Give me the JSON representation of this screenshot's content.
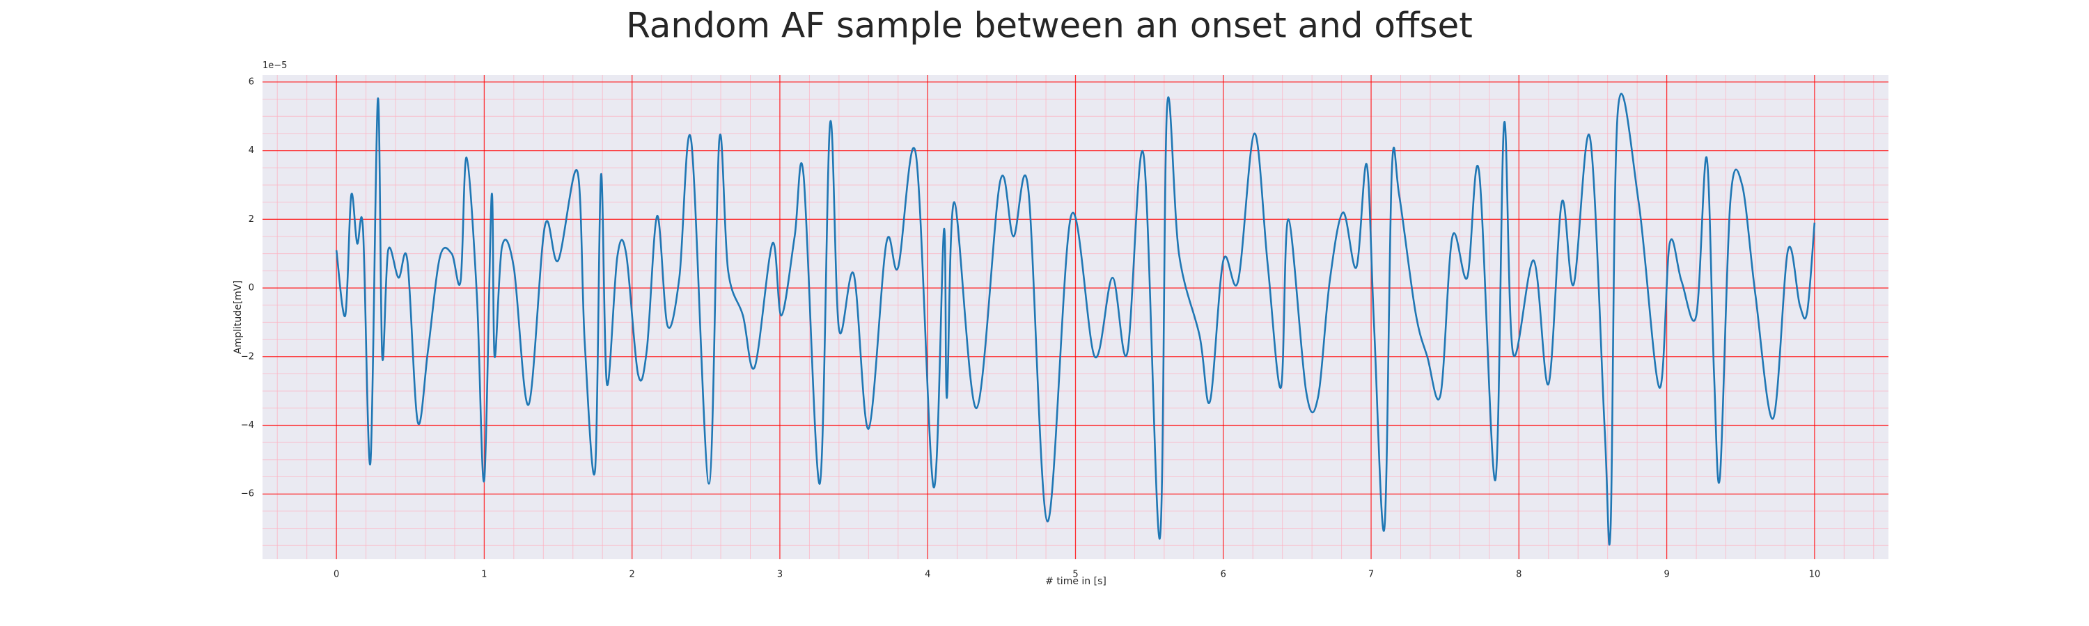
{
  "chart_data": {
    "type": "line",
    "title": "Random AF sample between an onset and offset",
    "xlabel": "# time in [s]",
    "ylabel": "Amplitude[mV]",
    "y_offset_label": "1e−5",
    "xlim": [
      -0.5,
      10.5
    ],
    "ylim": [
      -7.9,
      6.2
    ],
    "xticks": [
      0,
      1,
      2,
      3,
      4,
      5,
      6,
      7,
      8,
      9,
      10
    ],
    "yticks": [
      {
        "value": -6,
        "label": "−6"
      },
      {
        "value": -4,
        "label": "−4"
      },
      {
        "value": -2,
        "label": "−2"
      },
      0,
      2,
      4,
      6
    ],
    "grid": true,
    "grid_color": "#ff0000",
    "minor_grid": {
      "xstep": 0.2,
      "ystep": 0.5
    },
    "minor_grid_color": "#ffb0c0",
    "background": "#eaeaf2",
    "series": [
      {
        "color": "#1f77b4",
        "x": [
          0,
          0.06,
          0.1,
          0.14,
          0.18,
          0.23,
          0.28,
          0.31,
          0.35,
          0.42,
          0.48,
          0.55,
          0.62,
          0.7,
          0.78,
          0.84,
          0.88,
          0.95,
          1.0,
          1.05,
          1.07,
          1.12,
          1.2,
          1.3,
          1.41,
          1.5,
          1.63,
          1.68,
          1.75,
          1.79,
          1.83,
          1.9,
          1.96,
          2.04,
          2.1,
          2.17,
          2.24,
          2.32,
          2.4,
          2.52,
          2.59,
          2.65,
          2.75,
          2.83,
          2.95,
          3.01,
          3.1,
          3.16,
          3.27,
          3.34,
          3.4,
          3.5,
          3.6,
          3.72,
          3.8,
          3.92,
          4.04,
          4.11,
          4.13,
          4.18,
          4.33,
          4.49,
          4.58,
          4.68,
          4.81,
          4.97,
          5.13,
          5.25,
          5.35,
          5.46,
          5.57,
          5.62,
          5.7,
          5.84,
          5.91,
          6.0,
          6.1,
          6.21,
          6.3,
          6.39,
          6.44,
          6.56,
          6.64,
          6.72,
          6.81,
          6.9,
          6.97,
          7.02,
          7.09,
          7.14,
          7.19,
          7.3,
          7.38,
          7.47,
          7.55,
          7.65,
          7.73,
          7.84,
          7.9,
          7.96,
          8.1,
          8.2,
          8.29,
          8.37,
          8.48,
          8.58,
          8.62,
          8.67,
          8.81,
          8.95,
          9.02,
          9.1,
          9.2,
          9.27,
          9.32,
          9.36,
          9.43,
          9.51,
          9.6,
          9.72,
          9.82,
          9.9,
          9.95,
          10.0
        ],
        "values": [
          1.1,
          -0.8,
          2.7,
          1.3,
          1.7,
          -5.1,
          5.5,
          -2.0,
          1.1,
          0.3,
          0.8,
          -3.9,
          -1.8,
          0.9,
          1.0,
          0.2,
          3.8,
          -0.2,
          -5.6,
          2.7,
          -2.0,
          1.2,
          0.6,
          -3.4,
          1.8,
          0.8,
          3.4,
          -1.6,
          -5.3,
          3.3,
          -2.8,
          0.9,
          1.0,
          -2.5,
          -1.8,
          2.1,
          -1.1,
          0.3,
          4.3,
          -5.7,
          4.3,
          0.5,
          -0.8,
          -2.3,
          1.3,
          -0.8,
          1.5,
          3.3,
          -5.7,
          4.8,
          -1.2,
          0.4,
          -4.1,
          1.3,
          0.6,
          3.9,
          -5.8,
          1.7,
          -3.2,
          2.5,
          -3.5,
          3.1,
          1.5,
          2.9,
          -6.8,
          2.1,
          -2.0,
          0.3,
          -1.9,
          3.9,
          -7.3,
          5.3,
          1.0,
          -1.4,
          -3.3,
          0.8,
          0.2,
          4.5,
          0.7,
          -2.9,
          2.0,
          -3.0,
          -3.2,
          0.2,
          2.2,
          0.6,
          3.6,
          -1.1,
          -7.0,
          3.4,
          2.7,
          -0.7,
          -2.0,
          -3.1,
          1.5,
          0.3,
          3.4,
          -5.6,
          4.8,
          -1.9,
          0.8,
          -2.8,
          2.5,
          0.1,
          4.4,
          -4.1,
          -7.0,
          5.2,
          2.5,
          -2.9,
          1.3,
          0.2,
          -0.8,
          3.8,
          -2.5,
          -5.5,
          2.5,
          3.0,
          -0.2,
          -3.8,
          1.1,
          -0.5,
          -0.7,
          1.9
        ]
      }
    ]
  }
}
